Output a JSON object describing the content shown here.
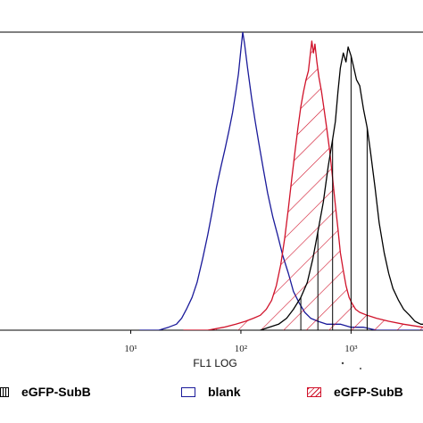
{
  "chart_data": {
    "type": "line",
    "xlabel": "FL1 LOG",
    "x_scale": "log",
    "xlim": [
      0.65,
      4500
    ],
    "ylim": [
      0,
      100
    ],
    "x_ticks": [
      {
        "value": 10,
        "label": "10¹"
      },
      {
        "value": 100,
        "label": "10²"
      },
      {
        "value": 1000,
        "label": "10³"
      }
    ],
    "grid": false,
    "legend_position": "bottom",
    "series": [
      {
        "name": "eGFP-SubB",
        "color": "#000000",
        "fill": "vertical-stripes",
        "points": [
          [
            150,
            0
          ],
          [
            180,
            1
          ],
          [
            220,
            2
          ],
          [
            260,
            4
          ],
          [
            300,
            7
          ],
          [
            350,
            11
          ],
          [
            400,
            16
          ],
          [
            450,
            24
          ],
          [
            500,
            33
          ],
          [
            560,
            43
          ],
          [
            620,
            55
          ],
          [
            680,
            64
          ],
          [
            720,
            70
          ],
          [
            760,
            80
          ],
          [
            800,
            88
          ],
          [
            850,
            93
          ],
          [
            900,
            90
          ],
          [
            940,
            95
          ],
          [
            1000,
            92
          ],
          [
            1060,
            88
          ],
          [
            1120,
            84
          ],
          [
            1200,
            82
          ],
          [
            1300,
            74
          ],
          [
            1400,
            68
          ],
          [
            1500,
            60
          ],
          [
            1650,
            48
          ],
          [
            1800,
            36
          ],
          [
            2000,
            26
          ],
          [
            2200,
            19
          ],
          [
            2400,
            14
          ],
          [
            2700,
            10
          ],
          [
            3000,
            7
          ],
          [
            3400,
            5
          ],
          [
            3800,
            3
          ],
          [
            4300,
            2
          ],
          [
            4500,
            2
          ]
        ]
      },
      {
        "name": "blank",
        "color": "#1a1a9a",
        "fill": "none",
        "points": [
          [
            12,
            0
          ],
          [
            18,
            0
          ],
          [
            22,
            1
          ],
          [
            26,
            2
          ],
          [
            29,
            4
          ],
          [
            32,
            7
          ],
          [
            36,
            11
          ],
          [
            40,
            16
          ],
          [
            45,
            24
          ],
          [
            50,
            32
          ],
          [
            55,
            40
          ],
          [
            60,
            48
          ],
          [
            66,
            55
          ],
          [
            72,
            61
          ],
          [
            78,
            67
          ],
          [
            84,
            73
          ],
          [
            90,
            80
          ],
          [
            95,
            86
          ],
          [
            100,
            94
          ],
          [
            104,
            100
          ],
          [
            108,
            96
          ],
          [
            115,
            88
          ],
          [
            125,
            78
          ],
          [
            135,
            70
          ],
          [
            145,
            63
          ],
          [
            160,
            54
          ],
          [
            175,
            46
          ],
          [
            195,
            38
          ],
          [
            215,
            32
          ],
          [
            240,
            25
          ],
          [
            270,
            19
          ],
          [
            300,
            13
          ],
          [
            340,
            9
          ],
          [
            380,
            6
          ],
          [
            430,
            4
          ],
          [
            500,
            3
          ],
          [
            600,
            2
          ],
          [
            800,
            2
          ],
          [
            1000,
            1
          ],
          [
            1300,
            1
          ],
          [
            1700,
            0
          ],
          [
            4500,
            0
          ]
        ]
      },
      {
        "name": "eGFP-SubB",
        "color": "#d0122a",
        "fill": "diagonal-hatch",
        "points": [
          [
            30,
            0
          ],
          [
            50,
            0
          ],
          [
            70,
            1
          ],
          [
            90,
            2
          ],
          [
            110,
            3
          ],
          [
            130,
            4
          ],
          [
            150,
            5
          ],
          [
            170,
            7
          ],
          [
            190,
            10
          ],
          [
            210,
            15
          ],
          [
            230,
            22
          ],
          [
            250,
            31
          ],
          [
            270,
            41
          ],
          [
            290,
            51
          ],
          [
            310,
            60
          ],
          [
            330,
            68
          ],
          [
            350,
            75
          ],
          [
            370,
            80
          ],
          [
            390,
            84
          ],
          [
            410,
            87
          ],
          [
            425,
            92
          ],
          [
            440,
            97
          ],
          [
            455,
            93
          ],
          [
            470,
            96
          ],
          [
            490,
            90
          ],
          [
            510,
            85
          ],
          [
            540,
            80
          ],
          [
            570,
            74
          ],
          [
            600,
            68
          ],
          [
            640,
            60
          ],
          [
            680,
            51
          ],
          [
            720,
            42
          ],
          [
            760,
            34
          ],
          [
            800,
            26
          ],
          [
            850,
            20
          ],
          [
            900,
            15
          ],
          [
            960,
            11
          ],
          [
            1020,
            9
          ],
          [
            1100,
            7
          ],
          [
            1200,
            6
          ],
          [
            1400,
            5
          ],
          [
            1700,
            4
          ],
          [
            2200,
            3
          ],
          [
            3000,
            2
          ],
          [
            4500,
            1
          ]
        ]
      }
    ],
    "legend": [
      {
        "label": "eGFP-SubB",
        "swatch": "vertical-stripes",
        "color": "#000000"
      },
      {
        "label": "blank",
        "swatch": "empty",
        "color": "#1a1a9a"
      },
      {
        "label": "eGFP-SubB",
        "swatch": "diagonal-hatch",
        "color": "#d0122a"
      }
    ]
  }
}
